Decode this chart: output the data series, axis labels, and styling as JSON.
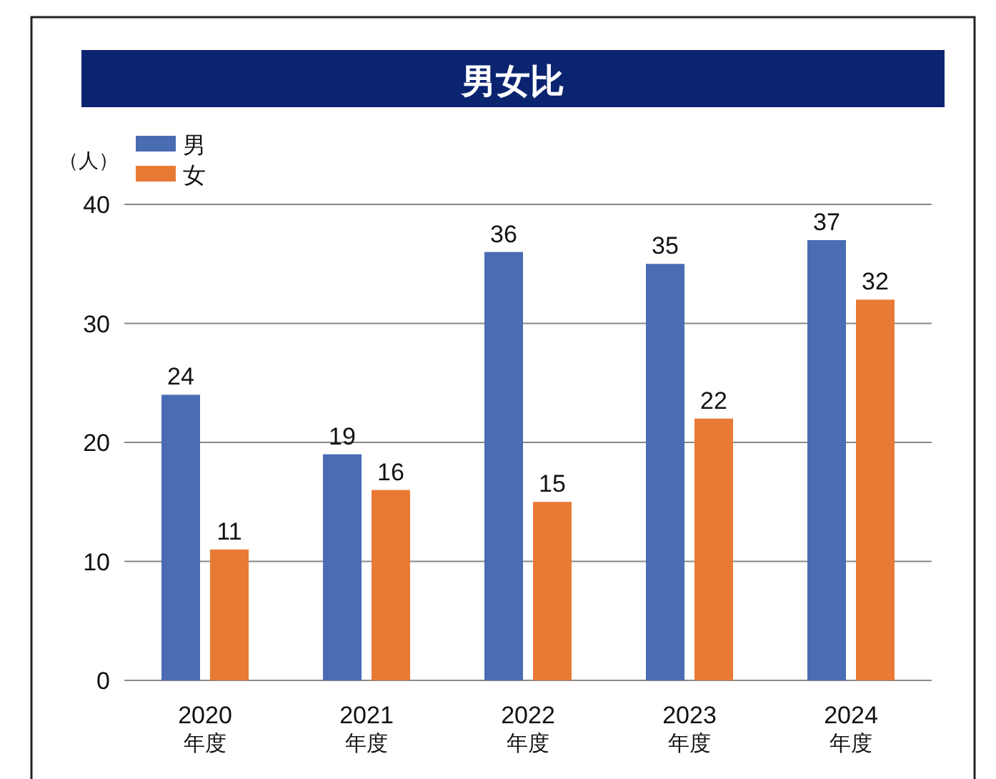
{
  "chart_data": {
    "type": "bar",
    "title": "男女比",
    "ylabel": "（人）",
    "categories": [
      "2020\n年度",
      "2021\n年度",
      "2022\n年度",
      "2023\n年度",
      "2024\n年度"
    ],
    "series": [
      {
        "name": "男",
        "color": "#4a6cb3",
        "values": [
          24,
          19,
          36,
          35,
          37
        ]
      },
      {
        "name": "女",
        "color": "#e97a35",
        "values": [
          11,
          16,
          15,
          22,
          32
        ]
      }
    ],
    "ylim": [
      0,
      40
    ],
    "yticks": [
      0,
      10,
      20,
      30,
      40
    ],
    "grid": "y",
    "legend": "top left",
    "data_labels": true
  }
}
